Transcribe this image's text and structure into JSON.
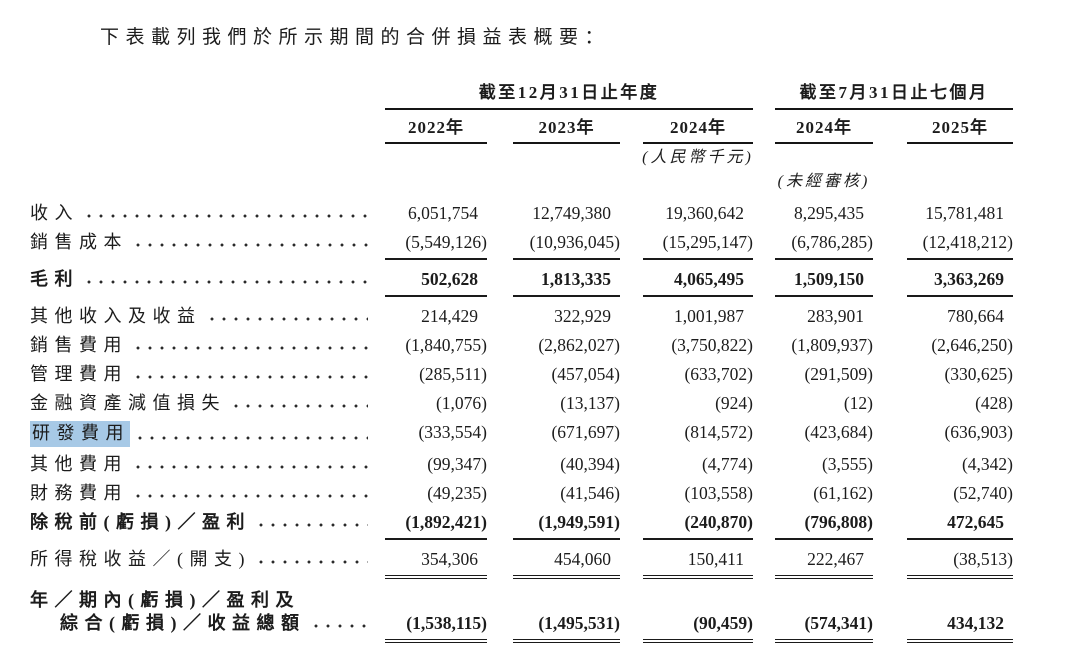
{
  "intro": "下表載列我們於所示期間的合併損益表概要：",
  "table": {
    "col_groups": [
      {
        "label": "截至12月31日止年度",
        "span": 3
      },
      {
        "label": "截至7月31日止七個月",
        "span": 2
      }
    ],
    "columns": [
      "2022年",
      "2023年",
      "2024年",
      "2024年",
      "2025年"
    ],
    "unit_note": "(人民幣千元)",
    "unaudited_note": "(未經審核)",
    "highlight_color": "#a7c9e6",
    "rows": [
      {
        "label": "收入",
        "values": [
          "6,051,754",
          "12,749,380",
          "19,360,642",
          "8,295,435",
          "15,781,481"
        ]
      },
      {
        "label": "銷售成本",
        "rule": "single",
        "values": [
          "(5,549,126)",
          "(10,936,045)",
          "(15,295,147)",
          "(6,786,285)",
          "(12,418,212)"
        ]
      },
      {
        "label": "毛利",
        "bold": true,
        "rule": "single",
        "values": [
          "502,628",
          "1,813,335",
          "4,065,495",
          "1,509,150",
          "3,363,269"
        ]
      },
      {
        "label": "其他收入及收益",
        "values": [
          "214,429",
          "322,929",
          "1,001,987",
          "283,901",
          "780,664"
        ]
      },
      {
        "label": "銷售費用",
        "values": [
          "(1,840,755)",
          "(2,862,027)",
          "(3,750,822)",
          "(1,809,937)",
          "(2,646,250)"
        ]
      },
      {
        "label": "管理費用",
        "values": [
          "(285,511)",
          "(457,054)",
          "(633,702)",
          "(291,509)",
          "(330,625)"
        ]
      },
      {
        "label": "金融資產減值損失",
        "values": [
          "(1,076)",
          "(13,137)",
          "(924)",
          "(12)",
          "(428)"
        ]
      },
      {
        "label": "研發費用",
        "highlighted": true,
        "values": [
          "(333,554)",
          "(671,697)",
          "(814,572)",
          "(423,684)",
          "(636,903)"
        ]
      },
      {
        "label": "其他費用",
        "values": [
          "(99,347)",
          "(40,394)",
          "(4,774)",
          "(3,555)",
          "(4,342)"
        ]
      },
      {
        "label": "財務費用",
        "values": [
          "(49,235)",
          "(41,546)",
          "(103,558)",
          "(61,162)",
          "(52,740)"
        ]
      },
      {
        "label": "除稅前(虧損)／盈利",
        "bold": true,
        "rule": "single",
        "values": [
          "(1,892,421)",
          "(1,949,591)",
          "(240,870)",
          "(796,808)",
          "472,645"
        ]
      },
      {
        "label": "所得稅收益／(開支)",
        "rule": "double",
        "values": [
          "354,306",
          "454,060",
          "150,411",
          "222,467",
          "(38,513)"
        ]
      },
      {
        "label": "年／期內(虧損)／盈利及",
        "label2": "綜合(虧損)／收益總額",
        "bold": true,
        "rule": "double",
        "gap_before": true,
        "values": [
          "(1,538,115)",
          "(1,495,531)",
          "(90,459)",
          "(574,341)",
          "434,132"
        ]
      }
    ]
  }
}
